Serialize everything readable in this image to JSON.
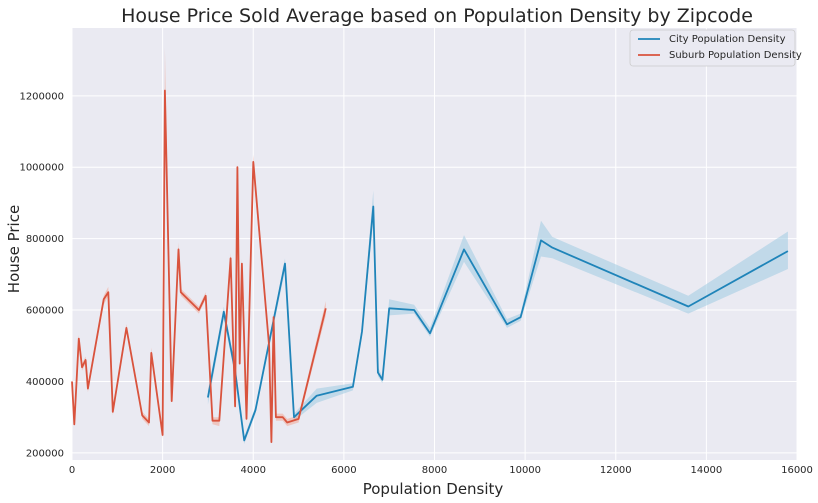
{
  "chart_data": {
    "type": "line",
    "title": "House Price Sold Average based on Population Density by Zipcode",
    "xlabel": "Population Density",
    "ylabel": "House Price",
    "xlim": [
      0,
      16000
    ],
    "ylim": [
      180000,
      1390000
    ],
    "x_ticks": [
      0,
      2000,
      4000,
      6000,
      8000,
      10000,
      12000,
      14000,
      16000
    ],
    "y_ticks": [
      200000,
      400000,
      600000,
      800000,
      1000000,
      1200000
    ],
    "grid": true,
    "legend_position": "top-right",
    "background": "#eaeaf2",
    "series": [
      {
        "name": "City Population Density",
        "color": "#1f84b9",
        "band_color": "#9ecae1",
        "points": [
          [
            3000,
            355000,
            335000,
            375000
          ],
          [
            3350,
            595000,
            575000,
            610000
          ],
          [
            3600,
            430000,
            415000,
            445000
          ],
          [
            3800,
            235000,
            225000,
            245000
          ],
          [
            4050,
            320000,
            310000,
            330000
          ],
          [
            4700,
            730000,
            710000,
            745000
          ],
          [
            4900,
            300000,
            290000,
            310000
          ],
          [
            5400,
            360000,
            340000,
            380000
          ],
          [
            6200,
            385000,
            375000,
            395000
          ],
          [
            6400,
            540000,
            525000,
            555000
          ],
          [
            6650,
            890000,
            850000,
            935000
          ],
          [
            6750,
            425000,
            415000,
            440000
          ],
          [
            6850,
            405000,
            395000,
            415000
          ],
          [
            7000,
            605000,
            585000,
            630000
          ],
          [
            7550,
            600000,
            590000,
            615000
          ],
          [
            7900,
            535000,
            525000,
            550000
          ],
          [
            8650,
            770000,
            735000,
            810000
          ],
          [
            9600,
            560000,
            550000,
            575000
          ],
          [
            9900,
            580000,
            570000,
            590000
          ],
          [
            10350,
            795000,
            750000,
            850000
          ],
          [
            10600,
            775000,
            745000,
            805000
          ],
          [
            13600,
            610000,
            590000,
            640000
          ],
          [
            15800,
            765000,
            715000,
            820000
          ]
        ]
      },
      {
        "name": "Suburb Population Density",
        "color": "#d9533d",
        "band_color": "#f0a898",
        "points": [
          [
            0,
            400000,
            395000,
            410000
          ],
          [
            50,
            280000,
            275000,
            290000
          ],
          [
            150,
            520000,
            510000,
            530000
          ],
          [
            220,
            440000,
            430000,
            450000
          ],
          [
            300,
            460000,
            450000,
            470000
          ],
          [
            350,
            380000,
            370000,
            390000
          ],
          [
            700,
            630000,
            615000,
            640000
          ],
          [
            800,
            650000,
            640000,
            665000
          ],
          [
            900,
            315000,
            305000,
            325000
          ],
          [
            1200,
            550000,
            540000,
            560000
          ],
          [
            1550,
            305000,
            295000,
            315000
          ],
          [
            1700,
            285000,
            275000,
            295000
          ],
          [
            1750,
            480000,
            465000,
            495000
          ],
          [
            2000,
            250000,
            240000,
            260000
          ],
          [
            2050,
            1215000,
            1100000,
            1335000
          ],
          [
            2200,
            345000,
            340000,
            350000
          ],
          [
            2350,
            770000,
            745000,
            790000
          ],
          [
            2400,
            650000,
            640000,
            660000
          ],
          [
            2800,
            600000,
            590000,
            610000
          ],
          [
            2950,
            640000,
            630000,
            650000
          ],
          [
            3100,
            290000,
            280000,
            300000
          ],
          [
            3250,
            290000,
            275000,
            300000
          ],
          [
            3500,
            745000,
            715000,
            760000
          ],
          [
            3600,
            330000,
            325000,
            335000
          ],
          [
            3650,
            1000000,
            990000,
            1010000
          ],
          [
            3700,
            450000,
            440000,
            460000
          ],
          [
            3750,
            730000,
            715000,
            745000
          ],
          [
            3850,
            295000,
            285000,
            305000
          ],
          [
            4000,
            1015000,
            980000,
            1035000
          ],
          [
            4350,
            500000,
            490000,
            510000
          ],
          [
            4400,
            230000,
            225000,
            235000
          ],
          [
            4450,
            580000,
            570000,
            590000
          ],
          [
            4500,
            300000,
            290000,
            310000
          ],
          [
            4650,
            300000,
            290000,
            310000
          ],
          [
            4750,
            285000,
            275000,
            295000
          ],
          [
            5000,
            295000,
            285000,
            305000
          ],
          [
            5600,
            605000,
            585000,
            625000
          ]
        ]
      }
    ]
  }
}
